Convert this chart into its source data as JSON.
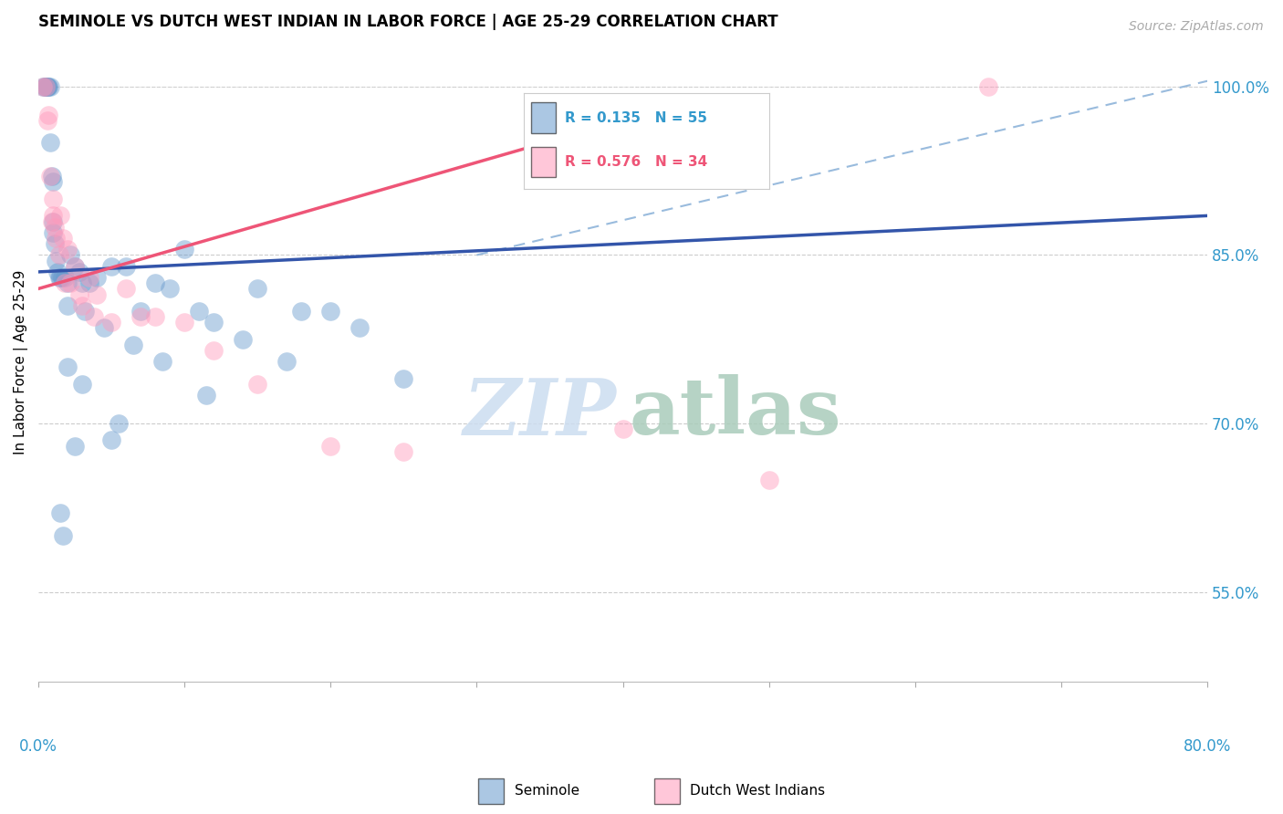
{
  "title": "SEMINOLE VS DUTCH WEST INDIAN IN LABOR FORCE | AGE 25-29 CORRELATION CHART",
  "source": "Source: ZipAtlas.com",
  "legend_label1": "Seminole",
  "legend_label2": "Dutch West Indians",
  "r1": 0.135,
  "n1": 55,
  "r2": 0.576,
  "n2": 34,
  "color_blue": "#6699CC",
  "color_pink": "#FF99BB",
  "color_blue_line": "#3355AA",
  "color_pink_line": "#EE5577",
  "color_dashed_line": "#99BBDD",
  "xlim": [
    0.0,
    80.0
  ],
  "ylim": [
    47.0,
    104.0
  ],
  "yticks": [
    55.0,
    70.0,
    85.0,
    100.0
  ],
  "ytick_labels": [
    "55.0%",
    "70.0%",
    "85.0%",
    "100.0%"
  ],
  "blue_line_x0": 0.0,
  "blue_line_y0": 83.5,
  "blue_line_x1": 80.0,
  "blue_line_y1": 88.5,
  "pink_line_x0": 0.0,
  "pink_line_y0": 82.0,
  "pink_line_x1": 40.0,
  "pink_line_y1": 97.0,
  "dashed_line_x0": 30.0,
  "dashed_line_y0": 85.0,
  "dashed_line_x1": 80.0,
  "dashed_line_y1": 100.5,
  "seminole_x": [
    0.3,
    0.4,
    0.5,
    0.5,
    0.6,
    0.6,
    0.7,
    0.8,
    0.8,
    0.9,
    1.0,
    1.0,
    1.0,
    1.1,
    1.2,
    1.3,
    1.4,
    1.5,
    1.6,
    1.8,
    2.0,
    2.0,
    2.2,
    2.5,
    2.8,
    3.0,
    3.5,
    4.0,
    5.0,
    6.0,
    7.0,
    8.0,
    9.0,
    10.0,
    11.0,
    12.0,
    14.0,
    15.0,
    17.0,
    18.0,
    20.0,
    22.0,
    25.0,
    3.2,
    4.5,
    6.5,
    8.5,
    11.5,
    2.0,
    3.0,
    5.0,
    5.5,
    2.5,
    1.7,
    1.5
  ],
  "seminole_y": [
    100.0,
    100.0,
    100.0,
    100.0,
    100.0,
    100.0,
    100.0,
    100.0,
    95.0,
    92.0,
    88.0,
    91.5,
    87.0,
    86.0,
    84.5,
    83.5,
    83.0,
    83.0,
    83.0,
    83.0,
    82.5,
    80.5,
    85.0,
    84.0,
    83.5,
    82.5,
    82.5,
    83.0,
    84.0,
    84.0,
    80.0,
    82.5,
    82.0,
    85.5,
    80.0,
    79.0,
    77.5,
    82.0,
    75.5,
    80.0,
    80.0,
    78.5,
    74.0,
    80.0,
    78.5,
    77.0,
    75.5,
    72.5,
    75.0,
    73.5,
    68.5,
    70.0,
    68.0,
    60.0,
    62.0
  ],
  "dutch_x": [
    0.3,
    0.5,
    0.6,
    0.7,
    0.8,
    0.9,
    1.0,
    1.0,
    1.1,
    1.2,
    1.4,
    1.5,
    1.7,
    1.8,
    2.0,
    2.2,
    2.5,
    3.0,
    3.5,
    4.0,
    5.0,
    6.0,
    7.0,
    8.0,
    10.0,
    12.0,
    15.0,
    20.0,
    25.0,
    40.0,
    50.0,
    65.0,
    2.8,
    3.8
  ],
  "dutch_y": [
    100.0,
    100.0,
    97.0,
    97.5,
    92.0,
    88.0,
    88.5,
    90.0,
    87.5,
    86.5,
    85.0,
    88.5,
    86.5,
    82.5,
    85.5,
    82.5,
    84.0,
    80.5,
    83.0,
    81.5,
    79.0,
    82.0,
    79.5,
    79.5,
    79.0,
    76.5,
    73.5,
    68.0,
    67.5,
    69.5,
    65.0,
    100.0,
    81.5,
    79.5
  ]
}
